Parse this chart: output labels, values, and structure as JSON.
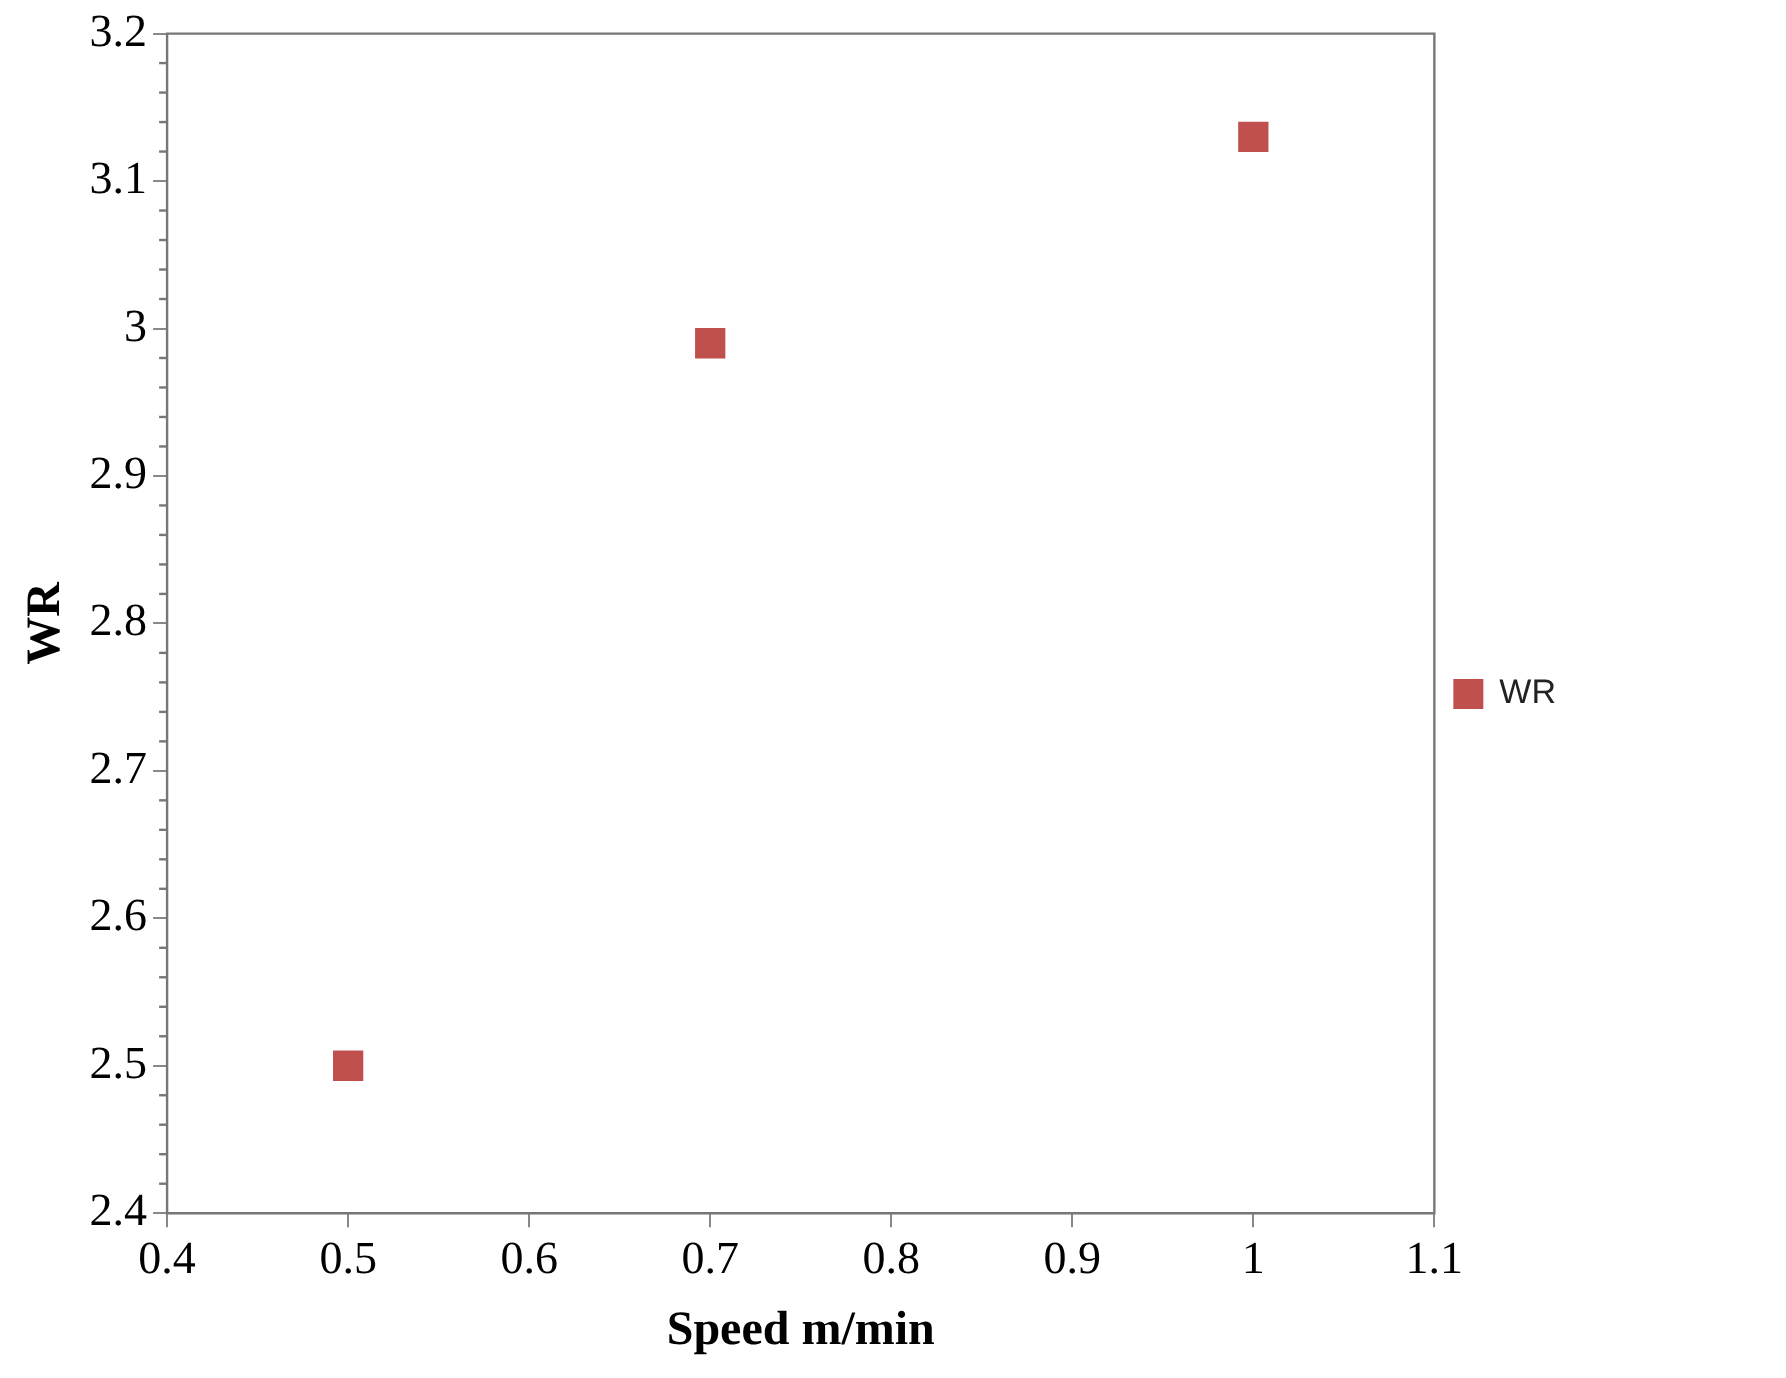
{
  "chart_data": {
    "type": "scatter",
    "xlabel": "Speed m/min",
    "ylabel": "WR",
    "series": [
      {
        "name": "WR",
        "color": "#c0504d",
        "x": [
          0.5,
          0.7,
          1.0
        ],
        "values": [
          2.5,
          2.99,
          3.13
        ]
      }
    ],
    "xlim": [
      0.4,
      1.1
    ],
    "xticks": [
      0.4,
      0.5,
      0.6,
      0.7,
      0.8,
      0.9,
      1,
      1.1
    ],
    "ylim": [
      2.4,
      3.2
    ],
    "yticks": [
      2.4,
      2.5,
      2.6,
      2.7,
      2.8,
      2.9,
      3,
      3.1,
      3.2
    ],
    "grid": false,
    "legend": "right",
    "marker": "square"
  }
}
